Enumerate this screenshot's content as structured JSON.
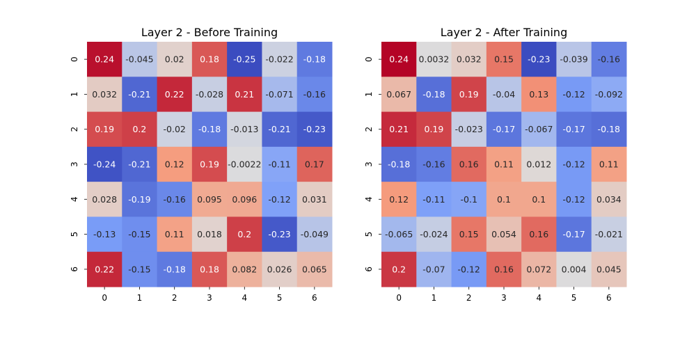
{
  "chart_data": [
    {
      "type": "heatmap",
      "title": "Layer 2 - Before Training",
      "x_ticks": [
        "0",
        "1",
        "2",
        "3",
        "4",
        "5",
        "6"
      ],
      "y_ticks": [
        "0",
        "1",
        "2",
        "3",
        "4",
        "5",
        "6"
      ],
      "colormap": "coolwarm",
      "value_range": [
        -0.25,
        0.25
      ],
      "values": [
        [
          0.24,
          -0.045,
          0.02,
          0.18,
          -0.25,
          -0.022,
          -0.18
        ],
        [
          0.032,
          -0.21,
          0.22,
          -0.028,
          0.21,
          -0.071,
          -0.16
        ],
        [
          0.19,
          0.2,
          -0.02,
          -0.18,
          -0.013,
          -0.21,
          -0.23
        ],
        [
          -0.24,
          -0.21,
          0.12,
          0.19,
          -0.0022,
          -0.11,
          0.17
        ],
        [
          0.028,
          -0.19,
          -0.16,
          0.095,
          0.096,
          -0.12,
          0.031
        ],
        [
          -0.13,
          -0.15,
          0.11,
          0.018,
          0.2,
          -0.23,
          -0.049
        ],
        [
          0.22,
          -0.15,
          -0.18,
          0.18,
          0.082,
          0.026,
          0.065
        ]
      ],
      "labels": [
        [
          "0.24",
          "-0.045",
          "0.02",
          "0.18",
          "-0.25",
          "-0.022",
          "-0.18"
        ],
        [
          "0.032",
          "-0.21",
          "0.22",
          "-0.028",
          "0.21",
          "-0.071",
          "-0.16"
        ],
        [
          "0.19",
          "0.2",
          "-0.02",
          "-0.18",
          "-0.013",
          "-0.21",
          "-0.23"
        ],
        [
          "-0.24",
          "-0.21",
          "0.12",
          "0.19",
          "-0.0022",
          "-0.11",
          "0.17"
        ],
        [
          "0.028",
          "-0.19",
          "-0.16",
          "0.095",
          "0.096",
          "-0.12",
          "0.031"
        ],
        [
          "-0.13",
          "-0.15",
          "0.11",
          "0.018",
          "0.2",
          "-0.23",
          "-0.049"
        ],
        [
          "0.22",
          "-0.15",
          "-0.18",
          "0.18",
          "0.082",
          "0.026",
          "0.065"
        ]
      ]
    },
    {
      "type": "heatmap",
      "title": "Layer 2 - After Training",
      "x_ticks": [
        "0",
        "1",
        "2",
        "3",
        "4",
        "5",
        "6"
      ],
      "y_ticks": [
        "0",
        "1",
        "2",
        "3",
        "4",
        "5",
        "6"
      ],
      "colormap": "coolwarm",
      "value_range": [
        -0.23,
        0.24
      ],
      "values": [
        [
          0.24,
          0.0032,
          0.032,
          0.15,
          -0.23,
          -0.039,
          -0.16
        ],
        [
          0.067,
          -0.18,
          0.19,
          -0.04,
          0.13,
          -0.12,
          -0.092
        ],
        [
          0.21,
          0.19,
          -0.023,
          -0.17,
          -0.067,
          -0.17,
          -0.18
        ],
        [
          -0.18,
          -0.16,
          0.16,
          0.11,
          0.012,
          -0.12,
          0.11
        ],
        [
          0.12,
          -0.11,
          -0.1,
          0.1,
          0.1,
          -0.12,
          0.034
        ],
        [
          -0.065,
          -0.024,
          0.15,
          0.054,
          0.16,
          -0.17,
          -0.021
        ],
        [
          0.2,
          -0.07,
          -0.12,
          0.16,
          0.072,
          0.004,
          0.045
        ]
      ],
      "labels": [
        [
          "0.24",
          "0.0032",
          "0.032",
          "0.15",
          "-0.23",
          "-0.039",
          "-0.16"
        ],
        [
          "0.067",
          "-0.18",
          "0.19",
          "-0.04",
          "0.13",
          "-0.12",
          "-0.092"
        ],
        [
          "0.21",
          "0.19",
          "-0.023",
          "-0.17",
          "-0.067",
          "-0.17",
          "-0.18"
        ],
        [
          "-0.18",
          "-0.16",
          "0.16",
          "0.11",
          "0.012",
          "-0.12",
          "0.11"
        ],
        [
          "0.12",
          "-0.11",
          "-0.1",
          "0.1",
          "0.1",
          "-0.12",
          "0.034"
        ],
        [
          "-0.065",
          "-0.024",
          "0.15",
          "0.054",
          "0.16",
          "-0.17",
          "-0.021"
        ],
        [
          "0.2",
          "-0.07",
          "-0.12",
          "0.16",
          "0.072",
          "0.004",
          "0.045"
        ]
      ]
    }
  ]
}
